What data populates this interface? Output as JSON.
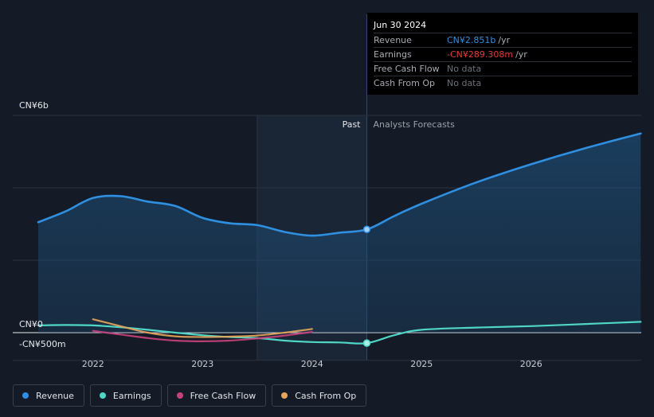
{
  "tooltip": {
    "date": "Jun 30 2024",
    "rows": [
      {
        "label": "Revenue",
        "value": "CN¥2.851b",
        "unit": "/yr",
        "color": "#2f8fe0"
      },
      {
        "label": "Earnings",
        "value": "-CN¥289.308m",
        "unit": "/yr",
        "color": "#e23b3b"
      },
      {
        "label": "Free Cash Flow",
        "value": "No data",
        "unit": "",
        "color": "#6b7079"
      },
      {
        "label": "Cash From Op",
        "value": "No data",
        "unit": "",
        "color": "#6b7079"
      }
    ]
  },
  "chart_data": {
    "type": "line",
    "y_labels": {
      "top": "CN¥6b",
      "zero": "CN¥0",
      "bottom": "-CN¥500m"
    },
    "ylim": [
      -0.5,
      6
    ],
    "xlim": [
      2021.5,
      2027.0
    ],
    "x_ticks": [
      "2022",
      "2023",
      "2024",
      "2025",
      "2026"
    ],
    "x_tick_values": [
      2022,
      2023,
      2024,
      2025,
      2026
    ],
    "past_label": "Past",
    "forecast_label": "Analysts Forecasts",
    "past_end": 2024.5,
    "shade_start": 2023.5,
    "series": [
      {
        "name": "Revenue",
        "unit": "CN¥b",
        "color": "#2f8fe0",
        "points": [
          [
            2021.5,
            3.05
          ],
          [
            2021.75,
            3.35
          ],
          [
            2022.0,
            3.72
          ],
          [
            2022.25,
            3.77
          ],
          [
            2022.5,
            3.62
          ],
          [
            2022.75,
            3.5
          ],
          [
            2023.0,
            3.17
          ],
          [
            2023.25,
            3.02
          ],
          [
            2023.5,
            2.97
          ],
          [
            2023.75,
            2.78
          ],
          [
            2024.0,
            2.68
          ],
          [
            2024.25,
            2.76
          ],
          [
            2024.5,
            2.851
          ],
          [
            2024.75,
            3.22
          ],
          [
            2025.0,
            3.56
          ],
          [
            2025.5,
            4.15
          ],
          [
            2026.0,
            4.65
          ],
          [
            2026.5,
            5.1
          ],
          [
            2027.0,
            5.5
          ]
        ]
      },
      {
        "name": "Earnings",
        "unit": "CN¥b",
        "color": "#4fd6c6",
        "points": [
          [
            2021.5,
            0.2
          ],
          [
            2021.75,
            0.21
          ],
          [
            2022.0,
            0.2
          ],
          [
            2022.25,
            0.15
          ],
          [
            2022.5,
            0.08
          ],
          [
            2022.75,
            0.0
          ],
          [
            2023.0,
            -0.07
          ],
          [
            2023.25,
            -0.12
          ],
          [
            2023.5,
            -0.15
          ],
          [
            2023.75,
            -0.22
          ],
          [
            2024.0,
            -0.26
          ],
          [
            2024.25,
            -0.27
          ],
          [
            2024.5,
            -0.289
          ],
          [
            2024.75,
            -0.07
          ],
          [
            2025.0,
            0.08
          ],
          [
            2025.5,
            0.14
          ],
          [
            2026.0,
            0.18
          ],
          [
            2026.5,
            0.24
          ],
          [
            2027.0,
            0.3
          ]
        ]
      },
      {
        "name": "Free Cash Flow",
        "unit": "CN¥b",
        "color": "#c9417c",
        "points": [
          [
            2022.0,
            0.05
          ],
          [
            2022.25,
            -0.05
          ],
          [
            2022.5,
            -0.15
          ],
          [
            2022.75,
            -0.22
          ],
          [
            2023.0,
            -0.24
          ],
          [
            2023.25,
            -0.22
          ],
          [
            2023.5,
            -0.16
          ],
          [
            2023.75,
            -0.08
          ],
          [
            2024.0,
            0.02
          ]
        ]
      },
      {
        "name": "Cash From Op",
        "unit": "CN¥b",
        "color": "#e7a55c",
        "points": [
          [
            2022.0,
            0.37
          ],
          [
            2022.25,
            0.18
          ],
          [
            2022.5,
            0.0
          ],
          [
            2022.75,
            -0.1
          ],
          [
            2023.0,
            -0.12
          ],
          [
            2023.25,
            -0.11
          ],
          [
            2023.5,
            -0.08
          ],
          [
            2023.75,
            0.0
          ],
          [
            2024.0,
            0.1
          ]
        ]
      }
    ]
  },
  "legend": [
    {
      "label": "Revenue",
      "color": "#2f8fe0"
    },
    {
      "label": "Earnings",
      "color": "#4fd6c6"
    },
    {
      "label": "Free Cash Flow",
      "color": "#c9417c"
    },
    {
      "label": "Cash From Op",
      "color": "#e7a55c"
    }
  ]
}
